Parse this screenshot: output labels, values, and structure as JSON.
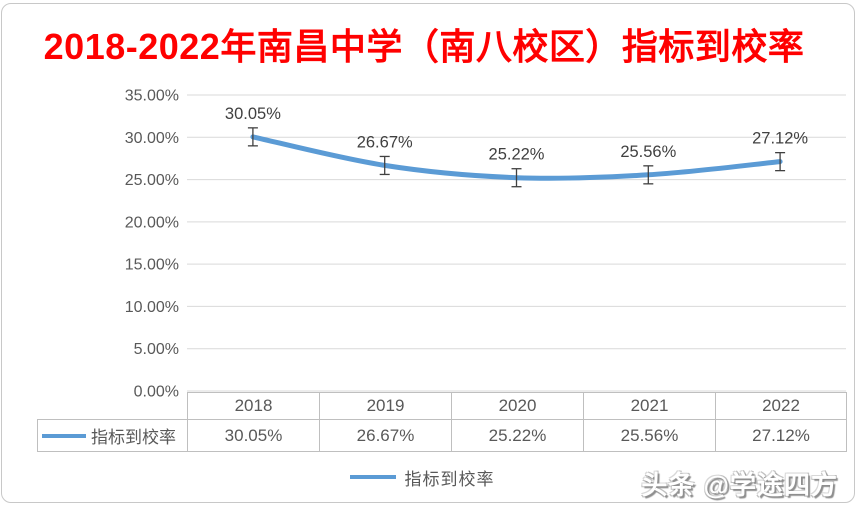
{
  "page": {
    "watermark": "头条 @学途四方"
  },
  "colors": {
    "title": "#FF0000",
    "line": "#5B9BD5",
    "grid": "#D9D9D9",
    "axis_text": "#595959",
    "data_label_text": "#404040",
    "error_bar": "#404040",
    "table_border": "#BFBFBF",
    "table_text": "#595959",
    "card_border": "#C8C8C8"
  },
  "chart_data": {
    "type": "line",
    "title": "2018-2022年南昌中学（南八校区）指标到校率",
    "categories": [
      "2018",
      "2019",
      "2020",
      "2021",
      "2022"
    ],
    "series": [
      {
        "name": "指标到校率",
        "values": [
          30.05,
          26.67,
          25.22,
          25.56,
          27.12
        ],
        "labels": [
          "30.05%",
          "26.67%",
          "25.22%",
          "25.56%",
          "27.12%"
        ]
      }
    ],
    "ylim": [
      0,
      35
    ],
    "ytick_step": 5,
    "ytick_labels": [
      "0.00%",
      "5.00%",
      "10.00%",
      "15.00%",
      "20.00%",
      "25.00%",
      "30.00%",
      "35.00%"
    ],
    "grid": true,
    "smooth": true,
    "error_bars": true,
    "legend_position": "bottom",
    "legend_label": "指标到校率",
    "data_table": true
  }
}
